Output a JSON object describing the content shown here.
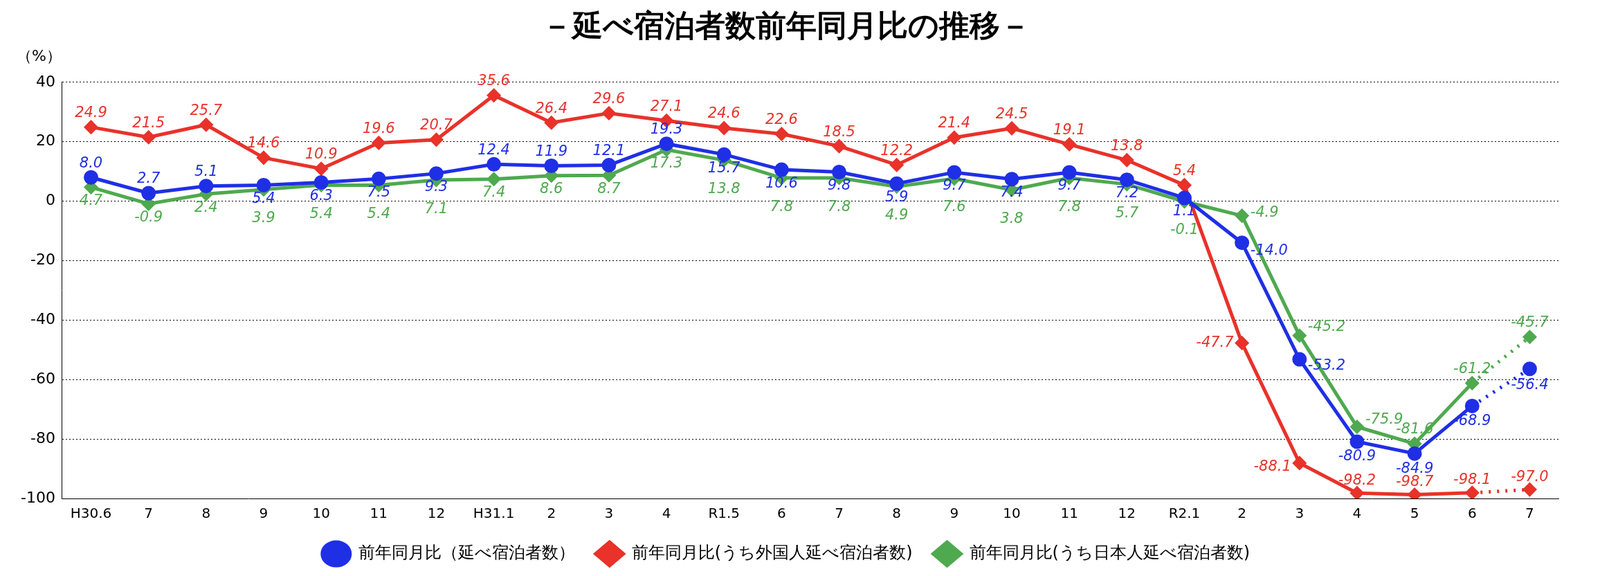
{
  "chart_data": {
    "type": "line",
    "title": "－延べ宿泊者数前年同月比の推移－",
    "y_label": "（%）",
    "categories": [
      "H30.6",
      "7",
      "8",
      "9",
      "10",
      "11",
      "12",
      "H31.1",
      "2",
      "3",
      "4",
      "R1.5",
      "6",
      "7",
      "8",
      "9",
      "10",
      "11",
      "12",
      "R2.1",
      "2",
      "3",
      "4",
      "5",
      "6",
      "7"
    ],
    "series": [
      {
        "name": "前年同月比（延べ宿泊者数）",
        "color": "#1f2fe6",
        "marker": "circle",
        "values": [
          8.0,
          2.7,
          5.1,
          5.4,
          6.3,
          7.5,
          9.3,
          12.4,
          11.9,
          12.1,
          19.3,
          15.7,
          10.6,
          9.8,
          5.9,
          9.7,
          7.4,
          9.7,
          7.2,
          1.1,
          -14.0,
          -53.2,
          -80.9,
          -84.9,
          -68.9,
          -56.4
        ],
        "value_labels": [
          "8.0",
          "2.7",
          "5.1",
          "5.4",
          "6.3",
          "7.5",
          "9.3",
          "12.4",
          "11.9",
          "12.1",
          "19.3",
          "15.7",
          "10.6",
          "9.8",
          "5.9",
          "9.7",
          "7.4",
          "9.7",
          "7.2",
          "1.1",
          "-14.0",
          "-53.2",
          "-80.9",
          "-84.9",
          "-68.9",
          "-56.4"
        ]
      },
      {
        "name": "前年同月比(うち外国人延べ宿泊者数)",
        "color": "#e8322a",
        "marker": "diamond",
        "values": [
          24.9,
          21.5,
          25.7,
          14.6,
          10.9,
          19.6,
          20.7,
          35.6,
          26.4,
          29.6,
          27.1,
          24.6,
          22.6,
          18.5,
          12.2,
          21.4,
          24.5,
          19.1,
          13.8,
          5.4,
          -47.7,
          -88.1,
          -98.2,
          -98.7,
          -98.1,
          -97.0
        ],
        "value_labels": [
          "24.9",
          "21.5",
          "25.7",
          "14.6",
          "10.9",
          "19.6",
          "20.7",
          "35.6",
          "26.4",
          "29.6",
          "27.1",
          "24.6",
          "22.6",
          "18.5",
          "12.2",
          "21.4",
          "24.5",
          "19.1",
          "13.8",
          "5.4",
          "-47.7",
          "-88.1",
          "-98.2",
          "-98.7",
          "-98.1",
          "-97.0"
        ]
      },
      {
        "name": "前年同月比(うち日本人延べ宿泊者数)",
        "color": "#4fa94f",
        "marker": "diamond",
        "values": [
          4.7,
          -0.9,
          2.4,
          3.9,
          5.4,
          5.4,
          7.1,
          7.4,
          8.6,
          8.7,
          17.3,
          13.8,
          7.8,
          7.8,
          4.9,
          7.6,
          3.8,
          7.8,
          5.7,
          -0.1,
          -4.9,
          -45.2,
          -75.9,
          -81.6,
          -61.2,
          -45.7
        ],
        "value_labels": [
          "4.7",
          "-0.9",
          "2.4",
          "3.9",
          "5.4",
          "5.4",
          "7.1",
          "7.4",
          "8.6",
          "8.7",
          "17.3",
          "13.8",
          "7.8",
          "7.8",
          "4.9",
          "7.6",
          "3.8",
          "7.8",
          "5.7",
          "-0.1",
          "-4.9",
          "-45.2",
          "-75.9",
          "-81.6",
          "-61.2",
          "-45.7"
        ]
      }
    ],
    "ylim": [
      -100,
      40
    ],
    "yticks": [
      -100,
      -80,
      -60,
      -40,
      -20,
      0,
      20,
      40
    ],
    "grid": true,
    "legend": "bottom",
    "data_labels": true
  }
}
